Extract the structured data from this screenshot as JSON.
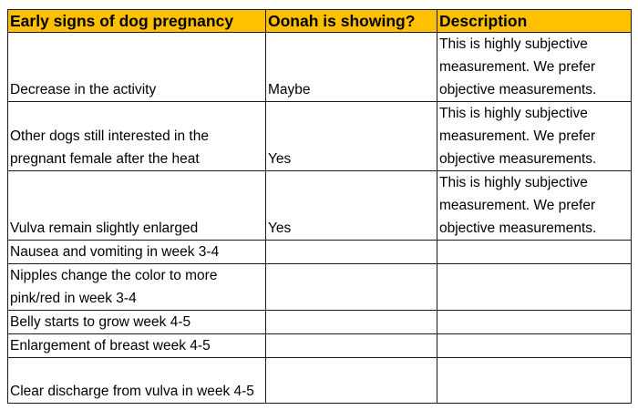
{
  "table": {
    "headers": [
      "Early signs of dog pregnancy",
      "Oonah is showing?",
      "Description"
    ],
    "rows": [
      {
        "sign": "Decrease in the activity",
        "showing": "Maybe",
        "description": "This is highly subjective measurement. We prefer objective measurements."
      },
      {
        "sign": "Other dogs still interested in the pregnant female after the heat",
        "showing": "Yes",
        "description": "This is highly subjective measurement. We prefer objective measurements."
      },
      {
        "sign": "Vulva remain slightly enlarged",
        "showing": "Yes",
        "description": "This is highly subjective measurement. We prefer objective measurements."
      },
      {
        "sign": "Nausea and vomiting in week 3-4",
        "showing": "",
        "description": ""
      },
      {
        "sign": "Nipples change the color to more pink/red in week 3-4",
        "showing": "",
        "description": ""
      },
      {
        "sign": "Belly starts to grow week 4-5",
        "showing": "",
        "description": ""
      },
      {
        "sign": "Enlargement of breast week 4-5",
        "showing": "",
        "description": ""
      },
      {
        "sign": "Clear discharge from vulva in week 4-5",
        "showing": "",
        "description": ""
      }
    ]
  },
  "colors": {
    "header_background": "#ffc000",
    "border": "#1a1a1a"
  }
}
